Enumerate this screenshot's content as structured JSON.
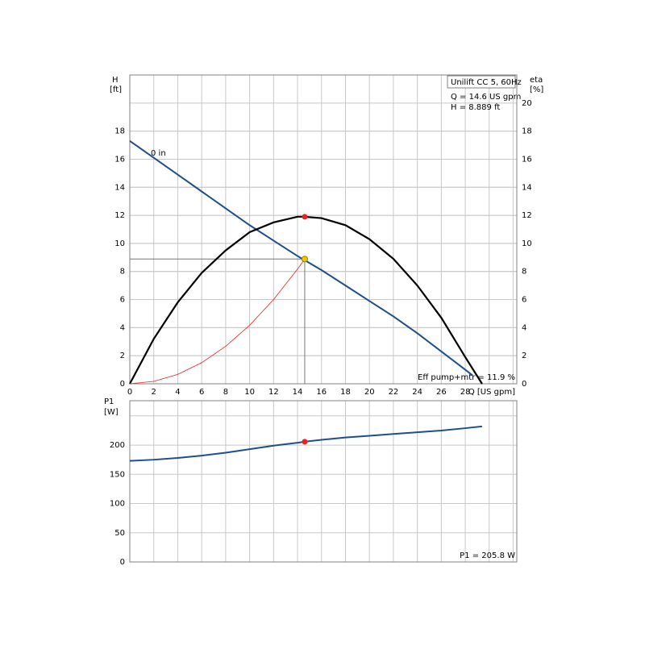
{
  "chart_data": [
    {
      "type": "line",
      "y_label": "H",
      "y_unit": "[ft]",
      "y2_label": "eta",
      "y2_unit": "[%]",
      "x_label": "Q [US gpm]",
      "info": [
        "Unilift CC 5, 60Hz",
        "Q = 14.6 US gpm",
        "H = 8.889 ft"
      ],
      "efficiency_label": "Eff pump+mtr = 11.9 %",
      "xlim": [
        0,
        32.3
      ],
      "xticks": [
        0,
        2,
        4,
        6,
        8,
        10,
        12,
        14,
        16,
        18,
        20,
        22,
        24,
        26,
        28
      ],
      "ylim": [
        0,
        22
      ],
      "yticks": [
        0,
        2,
        4,
        6,
        8,
        10,
        12,
        14,
        16,
        18
      ],
      "y2lim": [
        0,
        22
      ],
      "y2ticks": [
        0,
        2,
        4,
        6,
        8,
        10,
        12,
        14,
        16,
        18,
        20
      ],
      "grid": true,
      "series": [
        {
          "name": "0 in",
          "color": "#1f4e8c",
          "width": 2,
          "x": [
            0,
            2,
            4,
            6,
            8,
            10,
            12,
            14,
            16,
            18,
            20,
            22,
            24,
            26,
            28,
            28.6
          ],
          "values": [
            17.3,
            16.1,
            14.9,
            13.7,
            12.5,
            11.3,
            10.2,
            9.1,
            8.1,
            7.0,
            5.9,
            4.8,
            3.6,
            2.3,
            1.0,
            0.6
          ]
        },
        {
          "color": "#000000",
          "width": 2.2,
          "axis": "y2",
          "x": [
            0,
            2,
            4,
            6,
            8,
            10,
            12,
            14,
            14.6,
            16,
            18,
            20,
            22,
            24,
            26,
            28,
            29.4
          ],
          "values": [
            0,
            3.2,
            5.8,
            7.9,
            9.5,
            10.8,
            11.5,
            11.9,
            11.9,
            11.8,
            11.3,
            10.3,
            8.9,
            7.0,
            4.7,
            1.9,
            0
          ]
        },
        {
          "color": "#e8231f",
          "width": 0.8,
          "x": [
            0,
            2,
            4,
            6,
            8,
            10,
            12,
            14,
            14.6
          ],
          "values": [
            0,
            0.17,
            0.67,
            1.5,
            2.67,
            4.17,
            6.0,
            8.17,
            8.889
          ]
        }
      ],
      "markers": [
        {
          "x": 14.6,
          "y": 8.889,
          "color": "#f5c400",
          "guides": true
        },
        {
          "x": 14.6,
          "y": 11.9,
          "color": "#e8231f",
          "axis": "y2"
        }
      ]
    },
    {
      "type": "line",
      "y_label": "P1",
      "y_unit": "[W]",
      "info": [
        "P1 = 205.8 W"
      ],
      "xlim": [
        0,
        32.3
      ],
      "ylim": [
        0,
        276
      ],
      "yticks": [
        0,
        50,
        100,
        150,
        200
      ],
      "grid": true,
      "series": [
        {
          "color": "#1f4e8c",
          "width": 2,
          "x": [
            0,
            2,
            4,
            6,
            8,
            10,
            12,
            14,
            14.6,
            16,
            18,
            20,
            22,
            24,
            26,
            28,
            29.4
          ],
          "values": [
            173,
            175,
            178,
            182,
            187,
            193,
            199,
            204,
            205.8,
            209,
            213,
            216,
            219,
            222,
            225,
            229,
            232
          ]
        }
      ],
      "markers": [
        {
          "x": 14.6,
          "y": 205.8,
          "color": "#e8231f"
        }
      ]
    }
  ]
}
